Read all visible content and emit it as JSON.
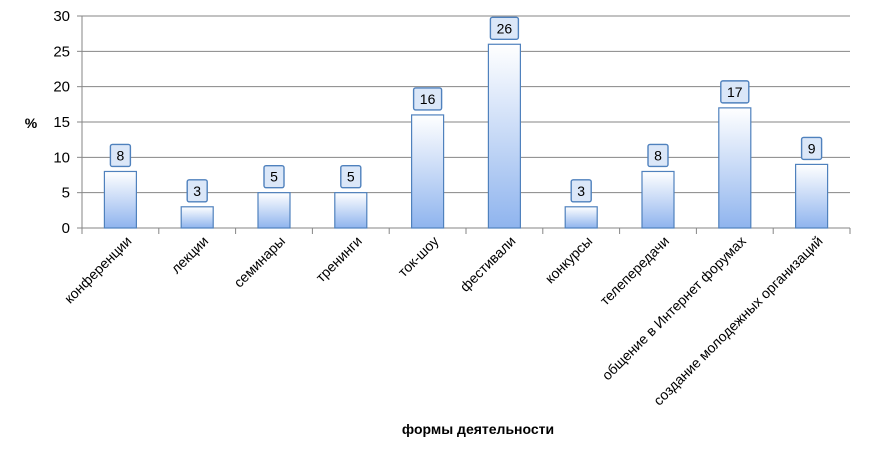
{
  "chart_data": {
    "type": "bar",
    "categories": [
      "конференции",
      "лекции",
      "семинары",
      "тренинги",
      "ток-шоу",
      "фестивали",
      "конкурсы",
      "телепередачи",
      "общение в Интернет форумах",
      "создание молодежных организаций"
    ],
    "values": [
      8,
      3,
      5,
      5,
      16,
      26,
      3,
      8,
      17,
      9
    ],
    "xlabel": "формы деятельности",
    "ylabel": "%",
    "ylim": [
      0,
      30
    ],
    "yticks": [
      0,
      5,
      10,
      15,
      20,
      25,
      30
    ],
    "grid": true,
    "legend": "none",
    "colors": {
      "bar_top": "#ffffff",
      "bar_bottom": "#8fb4ee",
      "bar_stroke": "#4f81bd",
      "grid": "#868686"
    }
  }
}
